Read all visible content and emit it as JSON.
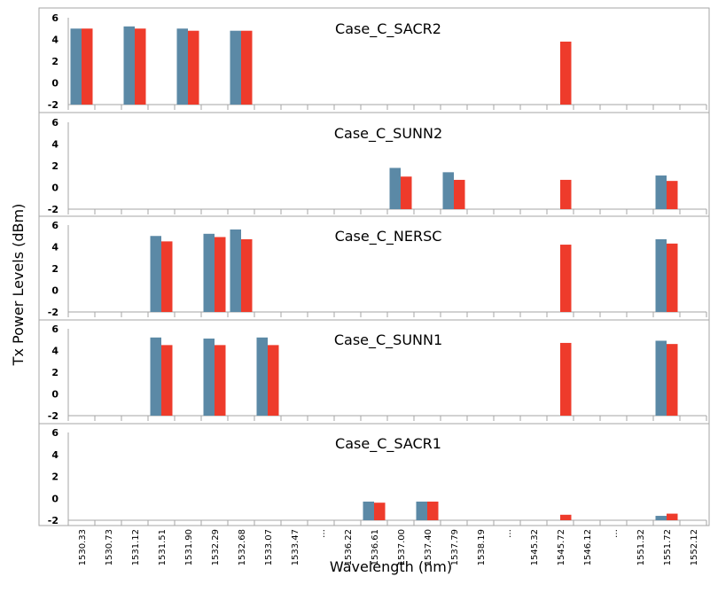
{
  "chart_data": {
    "type": "bar",
    "ylabel": "Tx Power Levels (dBm)",
    "xlabel": "Wavelength (nm)",
    "ylim": [
      -2,
      6
    ],
    "yticks": [
      -2,
      0,
      2,
      4,
      6
    ],
    "colors": {
      "blue": "#5b89a6",
      "red": "#ee3b2b"
    },
    "categories": [
      "1530.33",
      "1530.73",
      "1531.12",
      "1531.51",
      "1531.90",
      "1532.29",
      "1532.68",
      "1533.07",
      "1533.47",
      "…",
      "1536.22",
      "1536.61",
      "1537.00",
      "1537.40",
      "1537.79",
      "1538.19",
      "…",
      "1545.32",
      "1545.72",
      "1546.12",
      "…",
      "1551.32",
      "1551.72",
      "1552.12"
    ],
    "panels": [
      {
        "title": "Case_C_SACR2",
        "series": [
          {
            "color": "blue",
            "values": [
              5.0,
              null,
              5.2,
              null,
              5.0,
              null,
              4.8,
              null,
              null,
              null,
              null,
              null,
              null,
              null,
              null,
              null,
              null,
              null,
              null,
              null,
              null,
              null,
              null,
              null
            ]
          },
          {
            "color": "red",
            "values": [
              5.0,
              null,
              5.0,
              null,
              4.8,
              null,
              4.8,
              null,
              null,
              null,
              null,
              null,
              null,
              null,
              null,
              null,
              null,
              null,
              3.8,
              null,
              null,
              null,
              null,
              null
            ]
          }
        ]
      },
      {
        "title": "Case_C_SUNN2",
        "series": [
          {
            "color": "blue",
            "values": [
              null,
              null,
              null,
              null,
              null,
              null,
              null,
              null,
              null,
              null,
              null,
              null,
              1.8,
              null,
              1.4,
              null,
              null,
              null,
              null,
              null,
              null,
              null,
              1.1,
              null
            ]
          },
          {
            "color": "red",
            "values": [
              null,
              null,
              null,
              null,
              null,
              null,
              null,
              null,
              null,
              null,
              null,
              null,
              1.0,
              null,
              0.7,
              null,
              null,
              null,
              0.7,
              null,
              null,
              null,
              0.6,
              null
            ]
          }
        ]
      },
      {
        "title": "Case_C_NERSC",
        "series": [
          {
            "color": "blue",
            "values": [
              null,
              null,
              null,
              5.0,
              null,
              5.2,
              5.6,
              null,
              null,
              null,
              null,
              null,
              null,
              null,
              null,
              null,
              null,
              null,
              null,
              null,
              null,
              null,
              4.7,
              null
            ]
          },
          {
            "color": "red",
            "values": [
              null,
              null,
              null,
              4.5,
              null,
              4.9,
              4.7,
              null,
              null,
              null,
              null,
              null,
              null,
              null,
              null,
              null,
              null,
              null,
              4.2,
              null,
              null,
              null,
              4.3,
              null
            ]
          }
        ]
      },
      {
        "title": "Case_C_SUNN1",
        "series": [
          {
            "color": "blue",
            "values": [
              null,
              null,
              null,
              5.2,
              null,
              5.1,
              null,
              5.2,
              null,
              null,
              null,
              null,
              null,
              null,
              null,
              null,
              null,
              null,
              null,
              null,
              null,
              null,
              4.9,
              null
            ]
          },
          {
            "color": "red",
            "values": [
              null,
              null,
              null,
              4.5,
              null,
              4.5,
              null,
              4.5,
              null,
              null,
              null,
              null,
              null,
              null,
              null,
              null,
              null,
              null,
              4.7,
              null,
              null,
              null,
              4.6,
              null
            ]
          }
        ]
      },
      {
        "title": "Case_C_SACR1",
        "series": [
          {
            "color": "blue",
            "values": [
              null,
              null,
              null,
              null,
              null,
              null,
              null,
              null,
              null,
              null,
              null,
              -0.3,
              null,
              -0.3,
              null,
              null,
              null,
              null,
              null,
              null,
              null,
              null,
              -1.6,
              null
            ]
          },
          {
            "color": "red",
            "values": [
              null,
              null,
              null,
              null,
              null,
              null,
              null,
              null,
              null,
              null,
              null,
              -0.4,
              null,
              -0.3,
              null,
              null,
              null,
              null,
              -1.5,
              null,
              null,
              null,
              -1.4,
              null
            ]
          }
        ]
      }
    ]
  }
}
